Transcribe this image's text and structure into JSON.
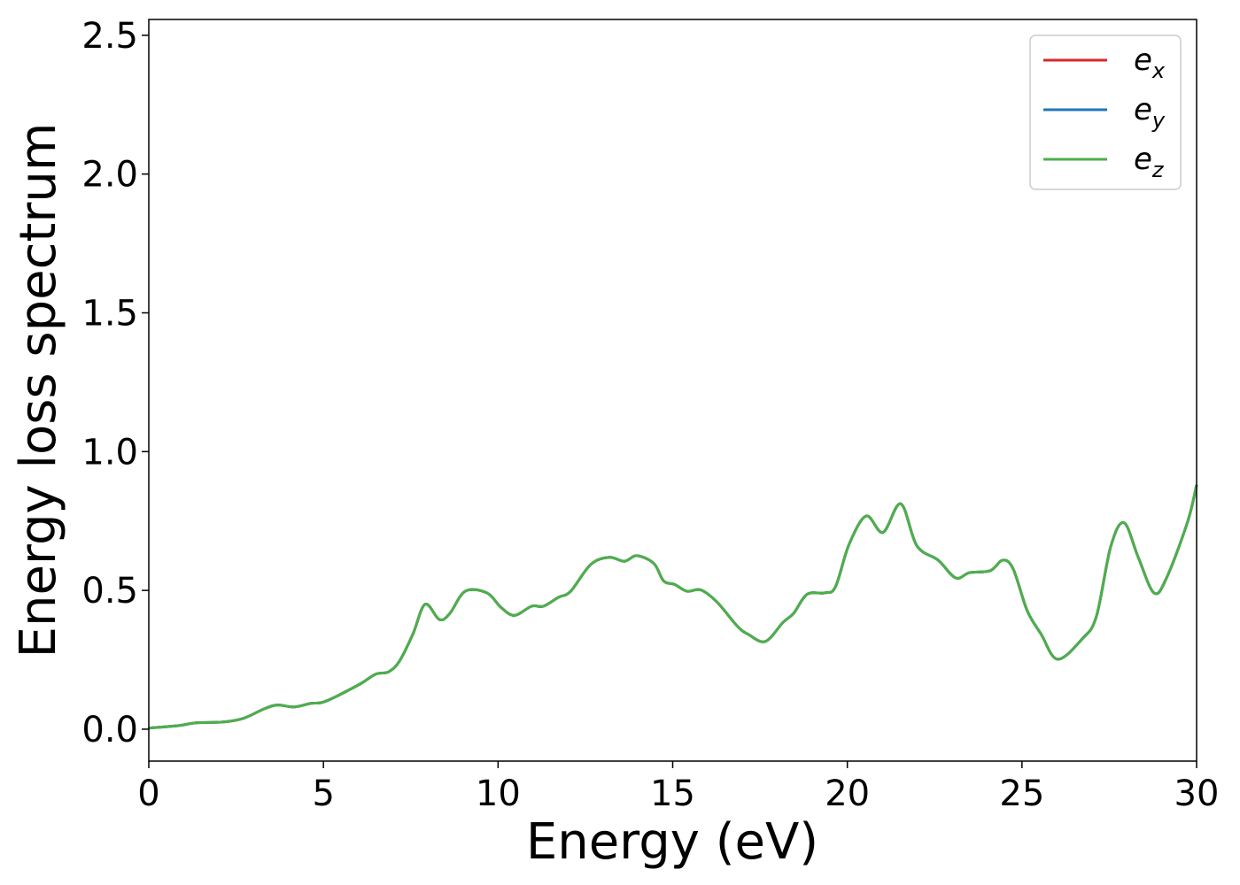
{
  "chart_data": {
    "type": "line",
    "title": "",
    "xlabel": "Energy (eV)",
    "ylabel": "Energy loss spectrum",
    "xlim": [
      0,
      30
    ],
    "ylim": [
      -0.115,
      2.557
    ],
    "xticks": [
      "0",
      "5",
      "10",
      "15",
      "20",
      "25",
      "30"
    ],
    "yticks": [
      "0.0",
      "0.5",
      "1.0",
      "1.5",
      "2.0",
      "2.5"
    ],
    "grid": false,
    "legend": "top-right",
    "x": [
      0,
      0.86,
      1.35,
      2.13,
      2.71,
      3.3,
      3.68,
      4.16,
      4.64,
      5.05,
      6.01,
      6.49,
      6.87,
      7.18,
      7.56,
      7.91,
      8.32,
      8.62,
      9.06,
      9.68,
      10.09,
      10.47,
      10.96,
      11.3,
      11.73,
      12.08,
      12.65,
      13.18,
      13.62,
      13.97,
      14.46,
      14.74,
      15.06,
      15.41,
      15.8,
      16.26,
      16.86,
      17.16,
      17.65,
      18.16,
      18.46,
      18.85,
      19.35,
      19.66,
      20.05,
      20.54,
      21.02,
      21.53,
      21.99,
      22.6,
      23.1,
      23.5,
      24.09,
      24.45,
      24.75,
      25.15,
      25.55,
      26.02,
      26.73,
      27.13,
      27.54,
      27.92,
      28.33,
      28.78,
      29.14,
      29.74,
      30
    ],
    "series": [
      {
        "name": "e_x",
        "label_base": "e",
        "label_sub": "x",
        "color": "#d62728",
        "values": [
          0.004,
          0.013,
          0.023,
          0.026,
          0.039,
          0.073,
          0.087,
          0.08,
          0.093,
          0.1,
          0.16,
          0.198,
          0.207,
          0.246,
          0.342,
          0.45,
          0.395,
          0.417,
          0.497,
          0.491,
          0.438,
          0.41,
          0.443,
          0.443,
          0.475,
          0.497,
          0.593,
          0.619,
          0.605,
          0.625,
          0.597,
          0.534,
          0.521,
          0.497,
          0.502,
          0.459,
          0.37,
          0.342,
          0.316,
          0.385,
          0.417,
          0.486,
          0.491,
          0.513,
          0.666,
          0.768,
          0.709,
          0.812,
          0.661,
          0.609,
          0.545,
          0.564,
          0.571,
          0.609,
          0.577,
          0.427,
          0.342,
          0.252,
          0.326,
          0.406,
          0.657,
          0.744,
          0.619,
          0.491,
          0.545,
          0.746,
          0.88
        ]
      },
      {
        "name": "e_y",
        "label_base": "e",
        "label_sub": "y",
        "color": "#1f77b4",
        "values": [
          0.004,
          0.013,
          0.023,
          0.026,
          0.039,
          0.073,
          0.087,
          0.08,
          0.093,
          0.1,
          0.16,
          0.198,
          0.207,
          0.246,
          0.342,
          0.45,
          0.395,
          0.417,
          0.497,
          0.491,
          0.438,
          0.41,
          0.443,
          0.443,
          0.475,
          0.497,
          0.593,
          0.619,
          0.605,
          0.625,
          0.597,
          0.534,
          0.521,
          0.497,
          0.502,
          0.459,
          0.37,
          0.342,
          0.316,
          0.385,
          0.417,
          0.486,
          0.491,
          0.513,
          0.666,
          0.768,
          0.709,
          0.812,
          0.661,
          0.609,
          0.545,
          0.564,
          0.571,
          0.609,
          0.577,
          0.427,
          0.342,
          0.252,
          0.326,
          0.406,
          0.657,
          0.744,
          0.619,
          0.491,
          0.545,
          0.746,
          0.88
        ]
      },
      {
        "name": "e_z",
        "label_base": "e",
        "label_sub": "z",
        "color": "#4daf4a",
        "values": [
          0.004,
          0.013,
          0.023,
          0.026,
          0.039,
          0.073,
          0.087,
          0.08,
          0.093,
          0.1,
          0.16,
          0.198,
          0.207,
          0.246,
          0.342,
          0.45,
          0.395,
          0.417,
          0.497,
          0.491,
          0.438,
          0.41,
          0.443,
          0.443,
          0.475,
          0.497,
          0.593,
          0.619,
          0.605,
          0.625,
          0.597,
          0.534,
          0.521,
          0.497,
          0.502,
          0.459,
          0.37,
          0.342,
          0.316,
          0.385,
          0.417,
          0.486,
          0.491,
          0.513,
          0.666,
          0.768,
          0.709,
          0.812,
          0.661,
          0.609,
          0.545,
          0.564,
          0.571,
          0.609,
          0.577,
          0.427,
          0.342,
          0.252,
          0.326,
          0.406,
          0.657,
          0.744,
          0.619,
          0.491,
          0.545,
          0.746,
          0.88
        ]
      }
    ]
  }
}
